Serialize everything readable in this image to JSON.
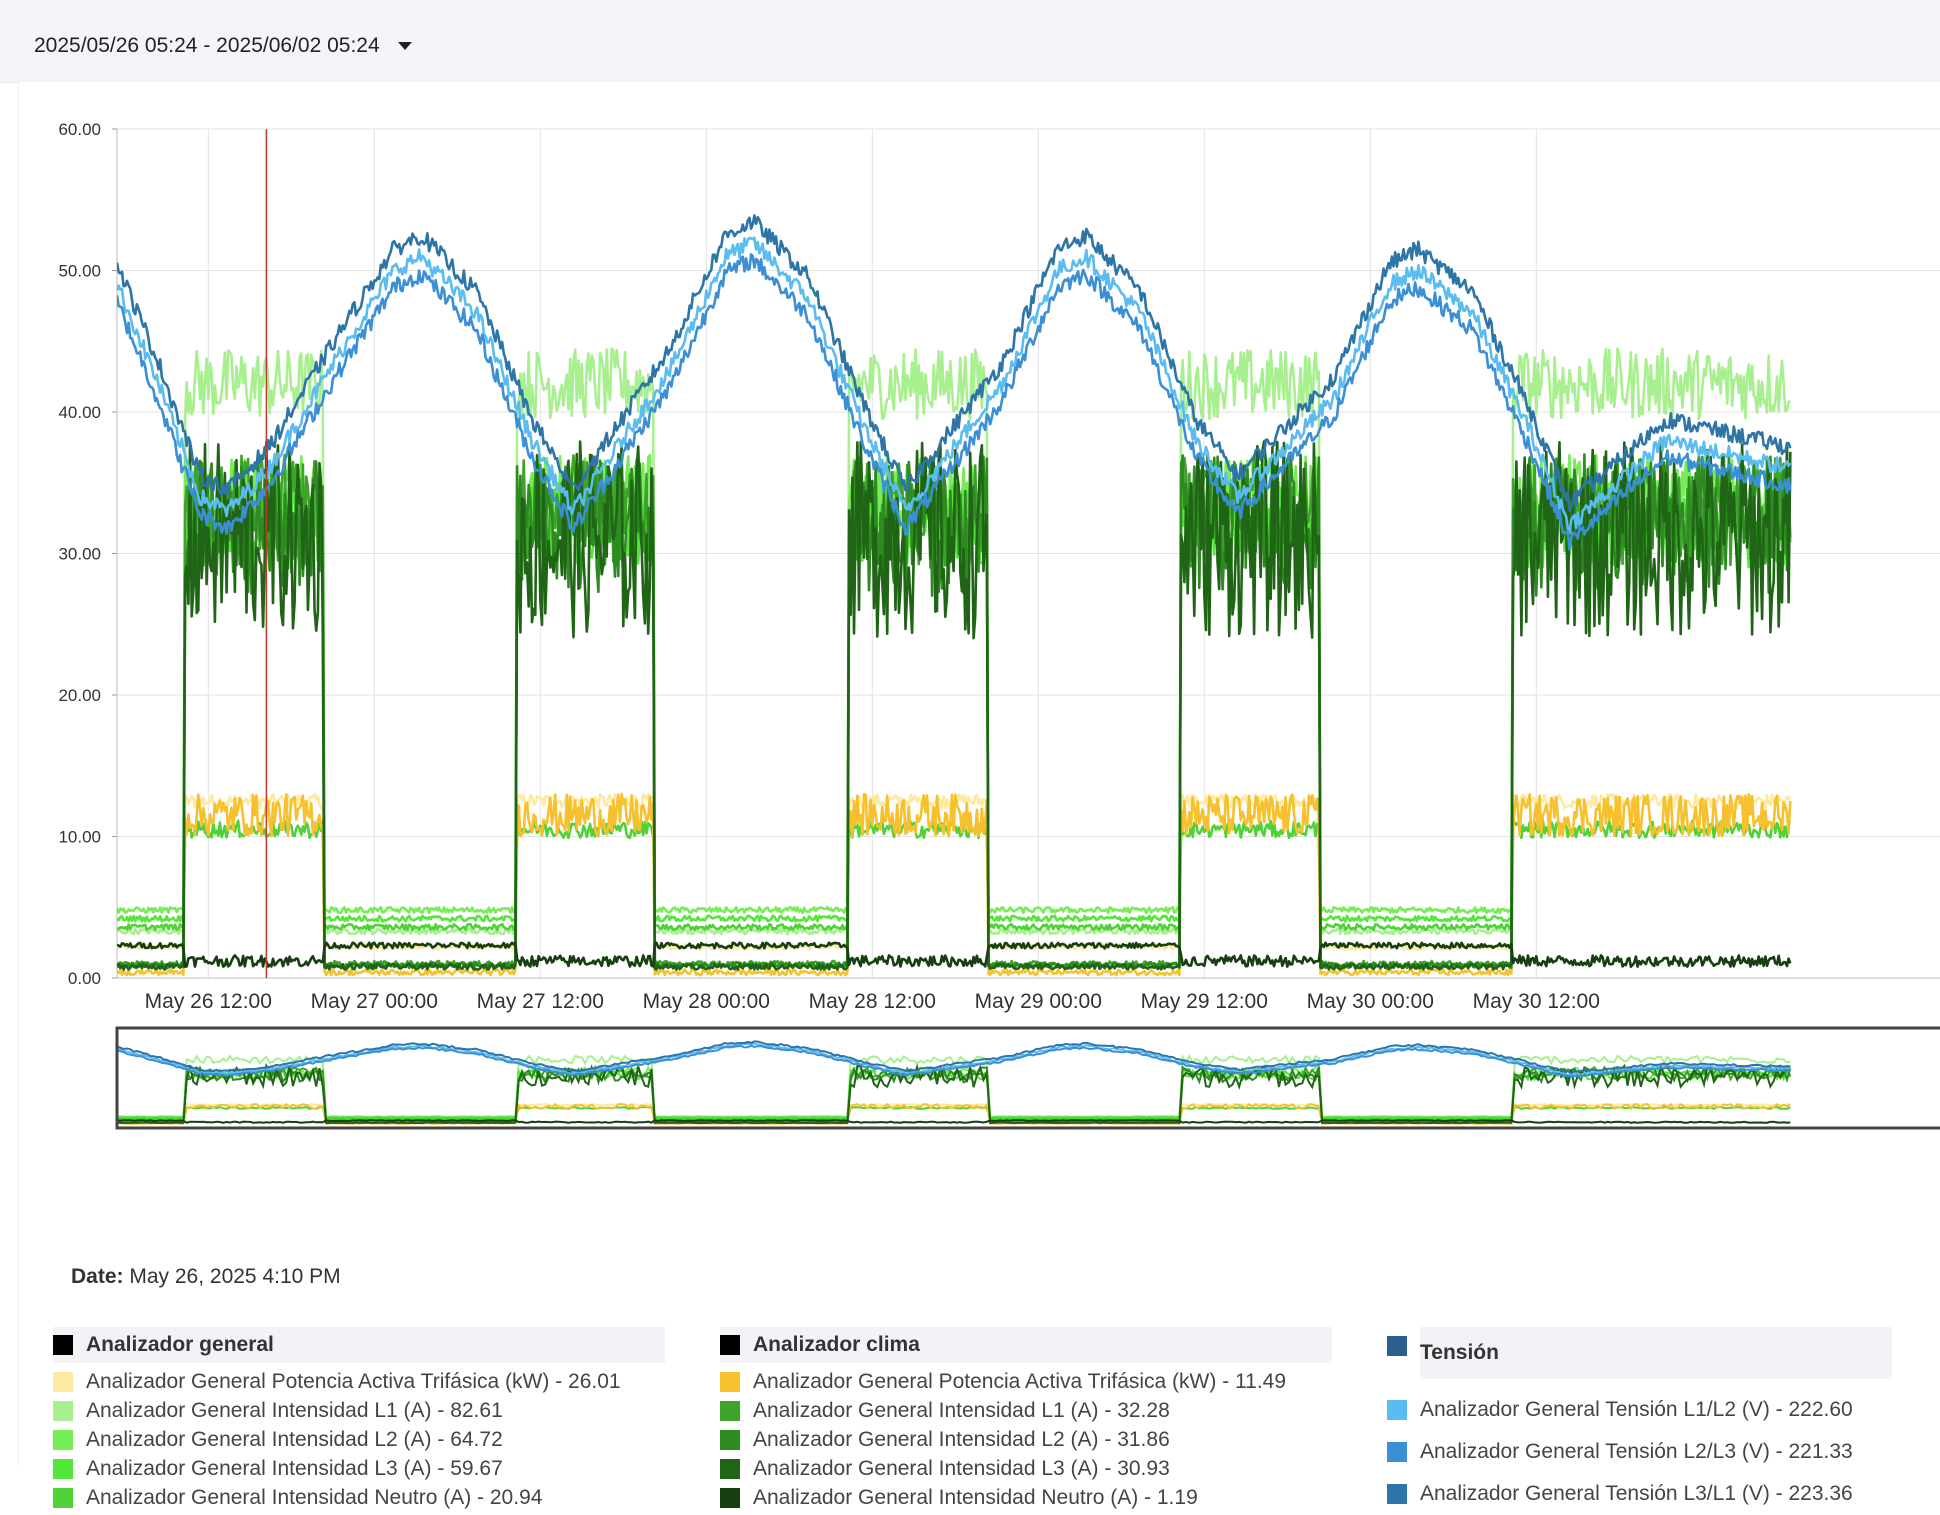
{
  "toolbar": {
    "date_range": "2025/05/26 05:24 - 2025/06/02 05:24",
    "dropdown_icon": "caret-down-icon"
  },
  "tooltip": {
    "date_label": "Date:",
    "date_value": "May 26, 2025 4:10 PM"
  },
  "legend": {
    "groups": [
      {
        "title": "Analizador general",
        "color": "#000000",
        "items": [
          {
            "label": "Analizador General Potencia Activa Trifásica (kW) - 26.01",
            "color": "#fde9a1"
          },
          {
            "label": "Analizador General Intensidad L1 (A) - 82.61",
            "color": "#a8f08f"
          },
          {
            "label": "Analizador General Intensidad L2 (A) - 64.72",
            "color": "#78ec57"
          },
          {
            "label": "Analizador General Intensidad L3 (A) - 59.67",
            "color": "#55e63a"
          },
          {
            "label": "Analizador General Intensidad Neutro (A) - 20.94",
            "color": "#4fd238"
          }
        ]
      },
      {
        "title": "Analizador clima",
        "color": "#000000",
        "items": [
          {
            "label": "Analizador General Potencia Activa Trifásica (kW) - 11.49",
            "color": "#f7c02e"
          },
          {
            "label": "Analizador General Intensidad L1 (A) - 32.28",
            "color": "#3ea32a"
          },
          {
            "label": "Analizador General Intensidad L2 (A) - 31.86",
            "color": "#2d8b21"
          },
          {
            "label": "Analizador General Intensidad L3 (A) - 30.93",
            "color": "#1f6515"
          },
          {
            "label": "Analizador General Intensidad Neutro (A) - 1.19",
            "color": "#173f11"
          }
        ]
      },
      {
        "title": "Tensión",
        "color": "#2a5f8f",
        "items": [
          {
            "label": "Analizador General Tensión L1/L2 (V) - 222.60",
            "color": "#5bbcf2"
          },
          {
            "label": "Analizador General Tensión L2/L3 (V) - 221.33",
            "color": "#3a8fd6"
          },
          {
            "label": "Analizador General Tensión L3/L1 (V) - 223.36",
            "color": "#2c75a6"
          }
        ]
      }
    ]
  },
  "chart_data": {
    "type": "line",
    "y_ticks": [
      "0.00",
      "10.00",
      "20.00",
      "30.00",
      "40.00",
      "50.00",
      "60.00"
    ],
    "ylim": [
      0,
      60
    ],
    "x_ticks": [
      "May 26 12:00",
      "May 27 00:00",
      "May 27 12:00",
      "May 28 00:00",
      "May 28 12:00",
      "May 29 00:00",
      "May 29 12:00",
      "May 30 00:00",
      "May 30 12:00"
    ],
    "x_domain_hours": [
      0,
      121
    ],
    "x_tick_hours": [
      6.6,
      18.6,
      30.6,
      42.6,
      54.6,
      66.6,
      78.6,
      90.6,
      102.6
    ],
    "cursor_hour": 10.8,
    "grid": true,
    "navigator": true,
    "workday_windows_hours": [
      [
        4.9,
        14.9
      ],
      [
        28.9,
        38.8
      ],
      [
        52.9,
        62.9
      ],
      [
        76.9,
        86.9
      ],
      [
        100.9,
        121
      ]
    ],
    "series": [
      {
        "name": "Analizador General Potencia Activa Trifásica (kW)",
        "color": "#fde9a1",
        "group": "Analizador general",
        "base": 2.2,
        "day": 12.5,
        "noise": 0.5
      },
      {
        "name": "Analizador General Intensidad L1 (A)",
        "color": "#a8f08f",
        "group": "Analizador general",
        "base": 3.3,
        "day": 42,
        "noise": 2.5
      },
      {
        "name": "Analizador General Intensidad L2 (A)",
        "color": "#78ec57",
        "group": "Analizador general",
        "base": 4.8,
        "day": 34,
        "noise": 3
      },
      {
        "name": "Analizador General Intensidad L3 (A)",
        "color": "#55e63a",
        "group": "Analizador general",
        "base": 4.2,
        "day": 32,
        "noise": 3
      },
      {
        "name": "Analizador General Intensidad Neutro (A)",
        "color": "#4fd238",
        "group": "Analizador general",
        "base": 3.6,
        "day": 10.5,
        "noise": 0.6
      },
      {
        "name": "Analizador General Potencia Activa Trifásica (kW)",
        "color": "#f7c02e",
        "group": "Analizador clima",
        "base": 0.4,
        "day": 11.5,
        "noise": 1.5
      },
      {
        "name": "Analizador General Intensidad L1 (A)",
        "color": "#3ea32a",
        "group": "Analizador clima",
        "base": 1.0,
        "day": 33,
        "noise": 4
      },
      {
        "name": "Analizador General Intensidad L2 (A)",
        "color": "#2d8b21",
        "group": "Analizador clima",
        "base": 0.9,
        "day": 32,
        "noise": 5
      },
      {
        "name": "Analizador General Intensidad L3 (A)",
        "color": "#1f6515",
        "group": "Analizador clima",
        "base": 0.8,
        "day": 31,
        "noise": 7
      },
      {
        "name": "Analizador General Intensidad Neutro (A)",
        "color": "#173f11",
        "group": "Analizador clima",
        "base": 2.3,
        "day": 1.2,
        "noise": 0.4
      },
      {
        "name": "Analizador General Tensión L1/L2 (V)",
        "color": "#5bbcf2",
        "group": "Tensión",
        "offset": 0
      },
      {
        "name": "Analizador General Tensión L2/L3 (V)",
        "color": "#3a8fd6",
        "group": "Tensión",
        "offset": -1.2
      },
      {
        "name": "Analizador General Tensión L3/L1 (V)",
        "color": "#2c75a6",
        "group": "Tensión",
        "offset": 1.5
      }
    ],
    "voltage_display_curve": {
      "hours": [
        0,
        3,
        6,
        8,
        11,
        16,
        20,
        22,
        26,
        30,
        33,
        40,
        44,
        46,
        50,
        54,
        57,
        64,
        68,
        70,
        74,
        78,
        81,
        88,
        92,
        94,
        98,
        102,
        105,
        112,
        121
      ],
      "values": [
        49,
        42,
        34,
        33,
        36,
        44,
        50,
        51,
        47,
        38,
        33,
        43,
        51,
        52,
        48,
        39,
        33,
        42,
        50,
        51,
        47,
        38,
        34,
        41,
        49,
        50,
        47,
        39,
        32,
        38,
        36
      ]
    }
  }
}
